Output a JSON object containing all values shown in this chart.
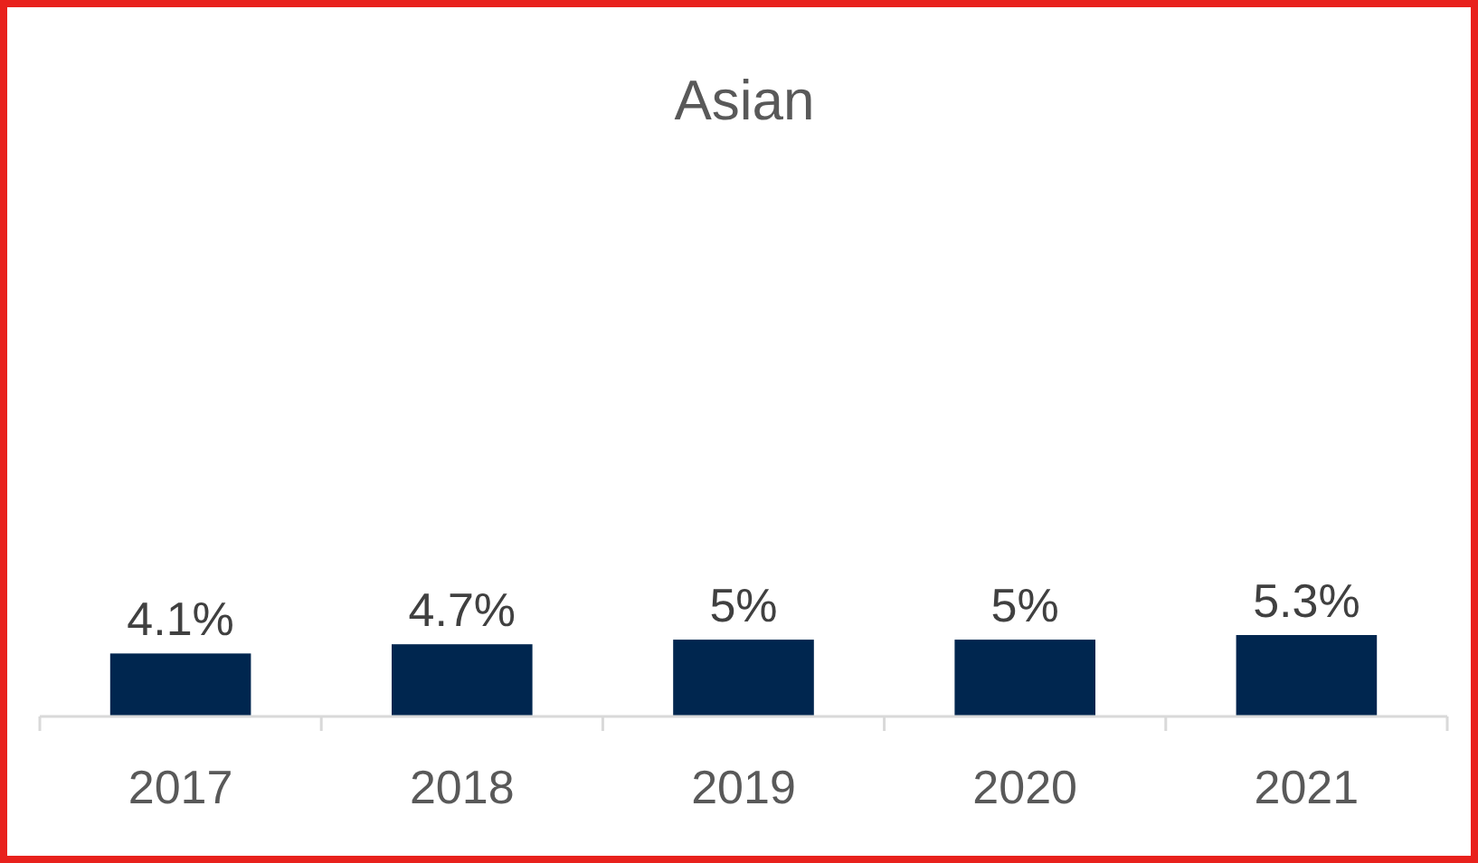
{
  "chart_data": {
    "type": "bar",
    "title": "Asian",
    "categories": [
      "2017",
      "2018",
      "2019",
      "2020",
      "2021"
    ],
    "values": [
      4.1,
      4.7,
      5,
      5,
      5.3
    ],
    "value_labels": [
      "4.1%",
      "4.7%",
      "5%",
      "5%",
      "5.3%"
    ],
    "color": "#00264f"
  }
}
